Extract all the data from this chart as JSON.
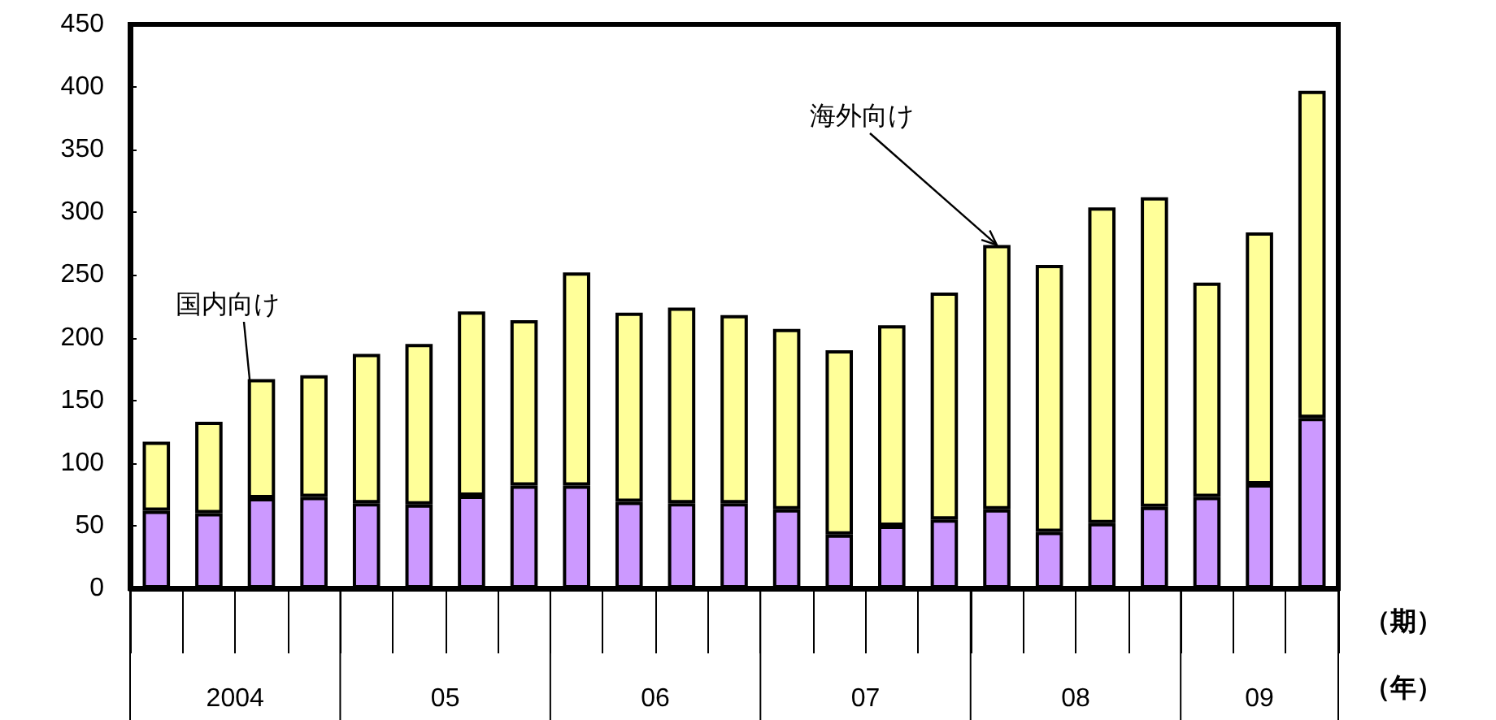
{
  "chart_data": {
    "type": "bar",
    "stacked": true,
    "categories": [
      null,
      null,
      null,
      null,
      null,
      null,
      null,
      null,
      null,
      null,
      null,
      null,
      null,
      null,
      null,
      null,
      null,
      null,
      null,
      null,
      null,
      null,
      null
    ],
    "series": [
      {
        "name": "国内向け",
        "color": "#cc99ff",
        "values": [
          62,
          60,
          72,
          73,
          68,
          67,
          74,
          82,
          82,
          69,
          68,
          68,
          63,
          43,
          50,
          55,
          63,
          45,
          52,
          65,
          73,
          83,
          136
        ]
      },
      {
        "name": "海外向け",
        "color": "#ffff99",
        "values": [
          55,
          73,
          95,
          97,
          119,
          128,
          147,
          132,
          170,
          151,
          156,
          150,
          144,
          147,
          160,
          181,
          211,
          213,
          252,
          247,
          171,
          201,
          261
        ]
      }
    ],
    "ylim": [
      0,
      450
    ],
    "yticks": [
      0,
      50,
      100,
      150,
      200,
      250,
      300,
      350,
      400,
      450
    ],
    "xlabel": "（期）",
    "annotations": [
      "2004",
      "05",
      "06",
      "07",
      "08",
      "09",
      "（年）"
    ],
    "grid": false,
    "legend": false
  }
}
